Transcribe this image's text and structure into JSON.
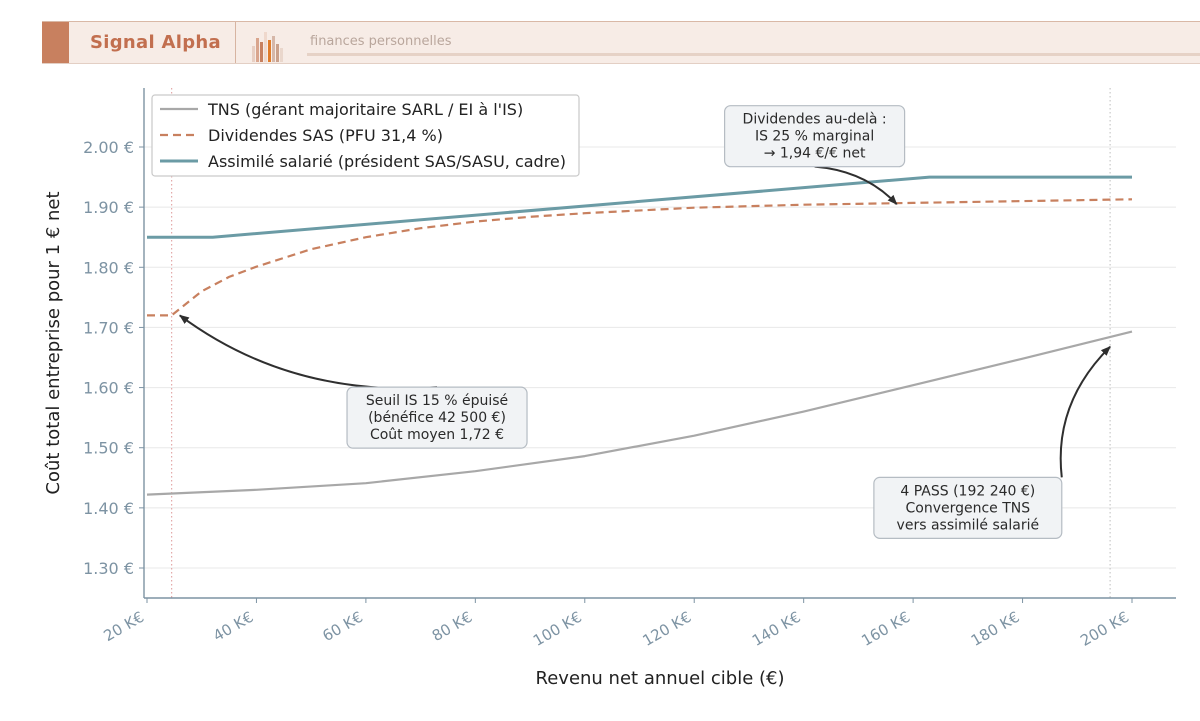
{
  "header": {
    "brand": "Signal Alpha",
    "tagline": "finances personnelles"
  },
  "colors": {
    "tns": "#a8a8a8",
    "dividendes": "#c8805f",
    "assimile": "#6b9ba5",
    "axis": "#7d93a3",
    "grid": "#e8e8e8",
    "annotation_bg": "#f1f3f5"
  },
  "chart_data": {
    "type": "line",
    "title": "",
    "xlabel": "Revenu net annuel cible (€)",
    "ylabel": "Coût total entreprise pour 1 € net",
    "xlim": [
      20000,
      200000
    ],
    "ylim": [
      1.25,
      2.1
    ],
    "grid": true,
    "legend_position": "top-left",
    "x_ticks": [
      20000,
      40000,
      60000,
      80000,
      100000,
      120000,
      140000,
      160000,
      180000,
      200000
    ],
    "x_tick_labels": [
      "20 K€",
      "40 K€",
      "60 K€",
      "80 K€",
      "100 K€",
      "120 K€",
      "140 K€",
      "160 K€",
      "180 K€",
      "200 K€"
    ],
    "y_ticks": [
      1.3,
      1.4,
      1.5,
      1.6,
      1.7,
      1.8,
      1.9,
      2.0
    ],
    "y_tick_labels": [
      "1.30 €",
      "1.40 €",
      "1.50 €",
      "1.60 €",
      "1.70 €",
      "1.80 €",
      "1.90 €",
      "2.00 €"
    ],
    "series": [
      {
        "name": "TNS (gérant majoritaire SARL / EI à l'IS)",
        "style": "solid",
        "x": [
          20000,
          40000,
          60000,
          80000,
          100000,
          120000,
          140000,
          160000,
          180000,
          200000
        ],
        "y": [
          1.422,
          1.43,
          1.441,
          1.461,
          1.486,
          1.52,
          1.56,
          1.604,
          1.648,
          1.693
        ]
      },
      {
        "name": "Dividendes SAS (PFU 31,4 %)",
        "style": "dashed",
        "x": [
          20000,
          24500,
          30000,
          35000,
          40000,
          50000,
          60000,
          70000,
          80000,
          90000,
          100000,
          120000,
          140000,
          160000,
          180000,
          200000
        ],
        "y": [
          1.72,
          1.72,
          1.76,
          1.784,
          1.801,
          1.83,
          1.85,
          1.865,
          1.876,
          1.884,
          1.89,
          1.899,
          1.904,
          1.907,
          1.91,
          1.913
        ]
      },
      {
        "name": "Assimilé salarié (président SAS/SASU, cadre)",
        "style": "solid",
        "x": [
          20000,
          32000,
          163000,
          200000
        ],
        "y": [
          1.85,
          1.85,
          1.95,
          1.95
        ]
      }
    ],
    "reference_lines": [
      {
        "x": 24500,
        "color": "#e3a9a9"
      },
      {
        "x": 196000,
        "color": "#c9c9c9"
      }
    ],
    "annotations": [
      {
        "lines": [
          "Seuil IS 15 % épuisé",
          "(bénéfice 42 500 €)",
          "Coût moyen 1,72 €"
        ],
        "target": [
          26000,
          1.72
        ],
        "text_at": [
          73000,
          1.55
        ]
      },
      {
        "lines": [
          "Dividendes au-delà :",
          "IS 25 % marginal",
          "→ 1,94 €/€ net"
        ],
        "target": [
          157000,
          1.905
        ],
        "text_at": [
          142000,
          2.018
        ]
      },
      {
        "lines": [
          "4 PASS (192 240 €)",
          "Convergence TNS",
          "vers assimilé salarié"
        ],
        "target": [
          196000,
          1.668
        ],
        "text_at": [
          170000,
          1.4
        ]
      }
    ]
  }
}
